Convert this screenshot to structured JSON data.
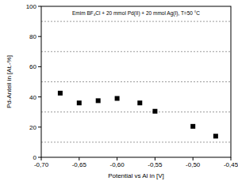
{
  "chart_data": {
    "type": "scatter",
    "title": "Emim BF₄Cl + 20 mmol Pd(II) + 20 mmol Ag(I), T=50 °C",
    "x_label": "Potential vs Al in [V]",
    "y_label": "Pd-Anteil in [At.-%]",
    "x": [
      -0.675,
      -0.65,
      -0.625,
      -0.6,
      -0.57,
      -0.55,
      -0.5,
      -0.47
    ],
    "values": [
      42.5,
      36,
      37.5,
      39,
      36,
      30.5,
      20.5,
      14
    ],
    "color": "#000000",
    "marker": "square",
    "xlim": [
      -0.7,
      -0.45
    ],
    "xticks": [
      {
        "value": -0.7,
        "label": "-0,70"
      },
      {
        "value": -0.65,
        "label": "-0,65"
      },
      {
        "value": -0.6,
        "label": "-0,60"
      },
      {
        "value": -0.55,
        "label": "-0,55"
      },
      {
        "value": -0.5,
        "label": "-0,50"
      },
      {
        "value": -0.45,
        "label": "-0,45"
      }
    ],
    "ylim": [
      0,
      100
    ],
    "yticks": [
      0,
      20,
      40,
      60,
      80,
      100
    ],
    "grid": true
  }
}
